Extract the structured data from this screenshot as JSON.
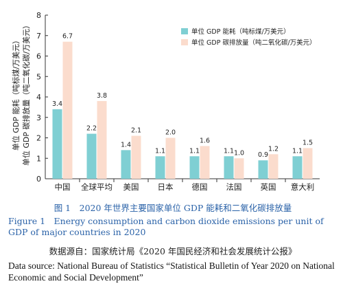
{
  "chart_data": {
    "type": "bar",
    "categories": [
      "中国",
      "全球平均",
      "美国",
      "日本",
      "德国",
      "法国",
      "英国",
      "意大利"
    ],
    "series": [
      {
        "name": "单位 GDP 能耗（吨标煤/万美元）",
        "values": [
          3.4,
          2.2,
          1.4,
          1.1,
          1.1,
          1.1,
          0.9,
          1.1
        ],
        "color": "#7fcfd3"
      },
      {
        "name": "单位 GDP 碳排放量（吨二氧化碳/万美元）",
        "values": [
          6.7,
          3.8,
          2.1,
          2.0,
          1.6,
          1.0,
          1.2,
          1.5
        ],
        "color": "#fbdccd"
      }
    ],
    "value_labels": [
      [
        "3.4",
        "2.2",
        "1.4",
        "1.1",
        "1.1",
        "1.1",
        "0.9",
        "1.1"
      ],
      [
        "6.7",
        "3.8",
        "2.1",
        "2.0",
        "1.6",
        "1.0",
        "1.2",
        "1.5"
      ]
    ],
    "ylim": [
      0,
      8
    ],
    "yticks": [
      0,
      1,
      2,
      3,
      4,
      5,
      6,
      7,
      8
    ],
    "ylabel_lines": [
      "单位 GDP 能耗（吨标煤/万美元）",
      "单位 GDP 碳排放量（吨二氧化碳/万美元）"
    ],
    "legend_position": "top-right",
    "grid": false
  },
  "caption": {
    "zh": "图 1　2020 年世界主要国家单位 GDP 能耗和二氧化碳排放量",
    "en": "Figure 1　Energy consumption and carbon dioxide emissions per unit of GDP of major countries in 2020"
  },
  "source": {
    "zh": "数据源自：国家统计局《2020 年国民经济和社会发展统计公报》",
    "en": "Data source: National Bureau of Statistics “Statistical Bulletin of Year 2020 on National Economic and Social Development”"
  }
}
